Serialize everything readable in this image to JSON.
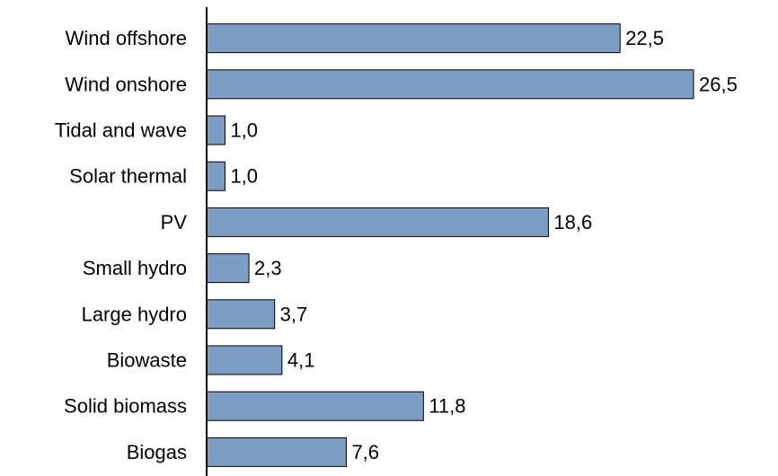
{
  "chart_data": {
    "type": "bar",
    "orientation": "horizontal",
    "categories": [
      "Wind offshore",
      "Wind onshore",
      "Tidal and wave",
      "Solar thermal",
      "PV",
      "Small hydro",
      "Large hydro",
      "Biowaste",
      "Solid biomass",
      "Biogas"
    ],
    "values": [
      22.5,
      26.5,
      1.0,
      1.0,
      18.6,
      2.3,
      3.7,
      4.1,
      11.8,
      7.6
    ],
    "value_labels": [
      "22,5",
      "26,5",
      "1,0",
      "1,0",
      "18,6",
      "2,3",
      "3,7",
      "4,1",
      "11,8",
      "7,6"
    ],
    "title": "",
    "xlabel": "",
    "ylabel": "",
    "xlim": [
      0,
      26.5
    ],
    "grid": false,
    "legend": "none",
    "colors": {
      "bar_fill": "#7c9ec4",
      "bar_stroke": "#000000",
      "axis": "#000000",
      "text": "#000000"
    }
  }
}
